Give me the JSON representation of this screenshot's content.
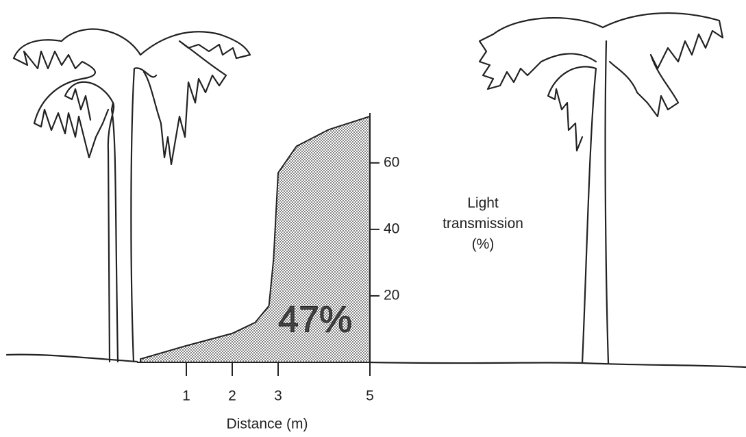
{
  "chart_data": {
    "type": "area",
    "x_label": "Distance (m)",
    "y_label": "Light transmission (%)",
    "annotation": "47%",
    "x": [
      0,
      1,
      2,
      2.5,
      2.8,
      2.9,
      3.0,
      3.4,
      4.1,
      5
    ],
    "values": [
      1,
      5,
      8.7,
      12,
      17,
      31,
      57,
      65,
      70,
      74
    ],
    "xlim": [
      0,
      5
    ],
    "xticks": [
      1,
      2,
      3,
      5
    ],
    "ylim": [
      0,
      75
    ],
    "yticks": [
      20,
      40,
      60
    ],
    "color": "#222222"
  }
}
